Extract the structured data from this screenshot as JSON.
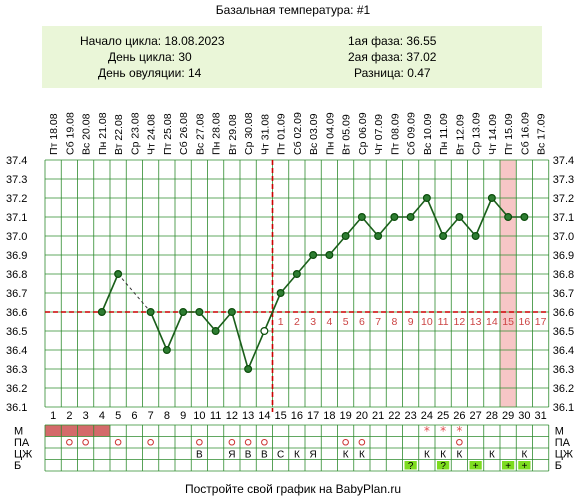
{
  "title": "Базальная температура: #1",
  "info": {
    "cycle_start": "Начало цикла: 18.08.2023",
    "cycle_day": "День цикла: 30",
    "ovulation_day": "День овуляции: 14",
    "phase1": "1ая фаза: 36.55",
    "phase2": "2ая фаза: 37.02",
    "difference": "Разница: 0.47"
  },
  "footer": "Постройте свой график на BabyPlan.ru",
  "colors": {
    "grid": "#2e8b2e",
    "line": "#1a5e1a",
    "marker_fill": "#2e7d32",
    "marker_ring": "#0b4d0b",
    "dashed_red": "#cc0000",
    "highlight": "#f7c6c6",
    "post_ov_label": "#cc4444",
    "mens_bar": "#d46a6a",
    "circle_mark": "#cc3333",
    "star_mark": "#e05050",
    "green_cell": "#7ddc1f"
  },
  "chart_data": {
    "type": "line",
    "title": "Базальная температура: #1",
    "days": [
      1,
      2,
      3,
      4,
      5,
      6,
      7,
      8,
      9,
      10,
      11,
      12,
      13,
      14,
      15,
      16,
      17,
      18,
      19,
      20,
      21,
      22,
      23,
      24,
      25,
      26,
      27,
      28,
      29,
      30,
      31
    ],
    "dates": [
      "Пт 18.08",
      "Сб 19.08",
      "Вс 20.08",
      "Пн 21.08",
      "Вт 22.08",
      "Ср 23.08",
      "Чт 24.08",
      "Пт 25.08",
      "Сб 26.08",
      "Вс 27.08",
      "Пн 28.08",
      "Вт 29.08",
      "Ср 30.08",
      "Чт 31.08",
      "Пт 01.09",
      "Сб 02.09",
      "Вс 03.09",
      "Пн 04.09",
      "Вт 05.09",
      "Ср 06.09",
      "Чт 07.09",
      "Пт 08.09",
      "Сб 09.09",
      "Вс 10.09",
      "Пн 11.09",
      "Вт 12.09",
      "Ср 13.09",
      "Чт 14.09",
      "Пт 15.09",
      "Сб 16.09",
      "Вс 17.09"
    ],
    "temperatures": [
      null,
      null,
      null,
      36.6,
      36.8,
      null,
      36.6,
      36.4,
      36.6,
      36.6,
      36.5,
      36.6,
      36.3,
      36.5,
      36.7,
      36.8,
      36.9,
      36.9,
      37.0,
      37.1,
      37.0,
      37.1,
      37.1,
      37.2,
      37.0,
      37.1,
      37.0,
      37.2,
      37.1,
      37.1,
      null
    ],
    "dotted_segments": [
      [
        5,
        7
      ]
    ],
    "ylim": [
      36.1,
      37.4
    ],
    "yticks": [
      "36.1",
      "36.2",
      "36.3",
      "36.4",
      "36.5",
      "36.6",
      "36.7",
      "36.8",
      "36.9",
      "37.0",
      "37.1",
      "37.2",
      "37.3",
      "37.4"
    ],
    "coverline": 36.6,
    "ovulation_day": 14,
    "post_ovulation_labels": [
      "1",
      "2",
      "3",
      "4",
      "5",
      "6",
      "7",
      "8",
      "9",
      "10",
      "11",
      "12",
      "13",
      "14",
      "15",
      "16",
      "17"
    ],
    "highlight_day": 29
  },
  "rows": {
    "labels": [
      "М",
      "ПА",
      "ЦЖ",
      "Б"
    ],
    "menstruation_days": [
      1,
      2,
      3,
      4
    ],
    "menstruation_star_days": [
      24,
      25,
      26
    ],
    "pa_circle_days": [
      2,
      3,
      5,
      7,
      10,
      12,
      13,
      14,
      19,
      20,
      26
    ],
    "cz": [
      {
        "day": 10,
        "text": "В"
      },
      {
        "day": 12,
        "text": "Я"
      },
      {
        "day": 13,
        "text": "В"
      },
      {
        "day": 14,
        "text": "В"
      },
      {
        "day": 15,
        "text": "С"
      },
      {
        "day": 16,
        "text": "К"
      },
      {
        "day": 17,
        "text": "Я"
      },
      {
        "day": 19,
        "text": "К"
      },
      {
        "day": 20,
        "text": "К"
      },
      {
        "day": 24,
        "text": "К"
      },
      {
        "day": 25,
        "text": "К"
      },
      {
        "day": 26,
        "text": "К"
      },
      {
        "day": 28,
        "text": "К"
      },
      {
        "day": 30,
        "text": "К"
      }
    ],
    "b": [
      {
        "day": 23,
        "text": "?"
      },
      {
        "day": 25,
        "text": "?"
      },
      {
        "day": 27,
        "text": "+"
      },
      {
        "day": 29,
        "text": "+"
      },
      {
        "day": 30,
        "text": "+"
      },
      {
        "day": 31,
        "text": ""
      }
    ]
  }
}
